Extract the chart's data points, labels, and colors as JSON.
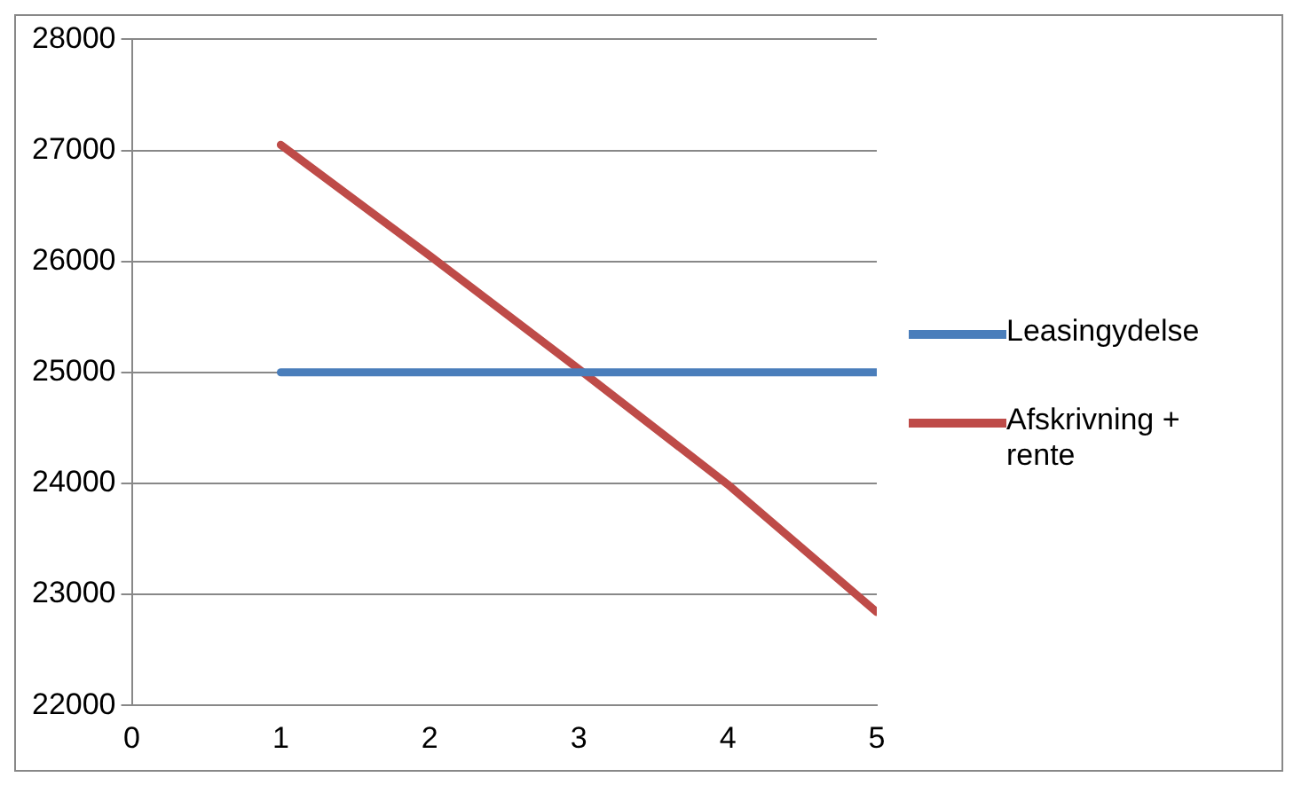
{
  "chart_data": {
    "type": "line",
    "x": [
      1,
      2,
      3,
      4,
      5
    ],
    "series": [
      {
        "name": "Leasingydelse",
        "color": "#4a7ebb",
        "values": [
          25000,
          25000,
          25000,
          25000,
          25000
        ]
      },
      {
        "name": "Afskrivning + rente",
        "color": "#be4b48",
        "values": [
          27050,
          26050,
          25030,
          23990,
          22840
        ]
      }
    ],
    "xlim": [
      0,
      5
    ],
    "xticks": [
      0,
      1,
      2,
      3,
      4,
      5
    ],
    "ylim": [
      22000,
      28000
    ],
    "yticks": [
      22000,
      23000,
      24000,
      25000,
      26000,
      27000,
      28000
    ],
    "grid": "y",
    "legend": "right",
    "marker": "none",
    "line_style": "solid"
  }
}
